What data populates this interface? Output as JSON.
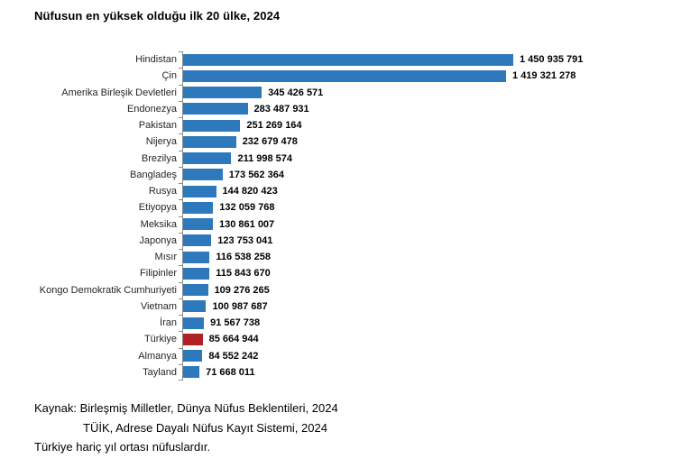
{
  "title": "Nüfusun en yüksek olduğu ilk 20 ülke, 2024",
  "chart_data": {
    "type": "bar",
    "orientation": "horizontal",
    "title": "Nüfusun en yüksek olduğu ilk 20 ülke, 2024",
    "xlabel": "",
    "ylabel": "",
    "xlim": [
      0,
      1450935791
    ],
    "grid": false,
    "legend": false,
    "categories": [
      "Hindistan",
      "Çin",
      "Amerika Birleşik Devletleri",
      "Endonezya",
      "Pakistan",
      "Nijerya",
      "Brezilya",
      "Bangladeş",
      "Rusya",
      "Etiyopya",
      "Meksika",
      "Japonya",
      "Mısır",
      "Filipinler",
      "Kongo Demokratik Cumhuriyeti",
      "Vietnam",
      "İran",
      "Türkiye",
      "Almanya",
      "Tayland"
    ],
    "values": [
      1450935791,
      1419321278,
      345426571,
      283487931,
      251269164,
      232679478,
      211998574,
      173562364,
      144820423,
      132059768,
      130861007,
      123753041,
      116538258,
      115843670,
      109276265,
      100987687,
      91567738,
      85664944,
      84552242,
      71668011
    ],
    "value_labels": [
      "1 450 935 791",
      "1 419 321 278",
      "345 426 571",
      "283 487 931",
      "251 269 164",
      "232 679 478",
      "211 998 574",
      "173 562 364",
      "144 820 423",
      "132 059 768",
      "130 861 007",
      "123 753 041",
      "116 538 258",
      "115 843 670",
      "109 276 265",
      "100 987 687",
      "91 567 738",
      "85 664 944",
      "84 552 242",
      "71 668 011"
    ],
    "colors": {
      "bar_default": "#2E79BC",
      "bar_highlight": "#B02024",
      "highlight_category": "Türkiye",
      "axis": "#8C8C8C"
    }
  },
  "footer": {
    "source_line1": "Kaynak: Birleşmiş Milletler, Dünya Nüfus Beklentileri, 2024",
    "source_line2": "TÜİK, Adrese Dayalı Nüfus Kayıt Sistemi, 2024",
    "note": "Türkiye hariç yıl ortası nüfuslardır."
  }
}
